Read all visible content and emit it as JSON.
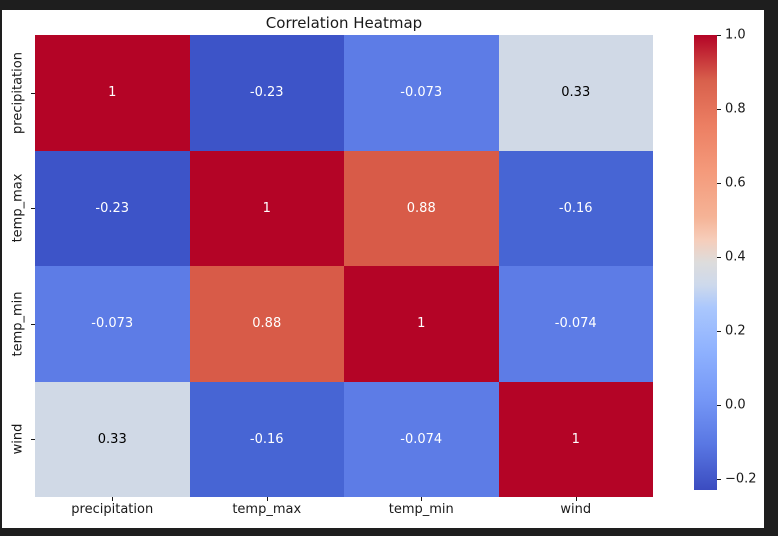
{
  "frame": {
    "background": "#1e1e1e",
    "figure_background": "#ffffff"
  },
  "chart_data": {
    "type": "heatmap",
    "title": "Correlation Heatmap",
    "colormap": "coolwarm",
    "categories": [
      "precipitation",
      "temp_max",
      "temp_min",
      "wind"
    ],
    "matrix": [
      [
        1,
        -0.23,
        -0.073,
        0.33
      ],
      [
        -0.23,
        1,
        0.88,
        -0.16
      ],
      [
        -0.073,
        0.88,
        1,
        -0.074
      ],
      [
        0.33,
        -0.16,
        -0.074,
        1
      ]
    ],
    "cell_labels": [
      [
        "1",
        "-0.23",
        "-0.073",
        "0.33"
      ],
      [
        "-0.23",
        "1",
        "0.88",
        "-0.16"
      ],
      [
        "-0.073",
        "0.88",
        "1",
        "-0.074"
      ],
      [
        "0.33",
        "-0.16",
        "-0.074",
        "1"
      ]
    ],
    "cell_colors": [
      [
        "#b40426",
        "#3d54c8",
        "#5d7ce6",
        "#d0d9e6"
      ],
      [
        "#3d54c8",
        "#b40426",
        "#d85b48",
        "#4765d4"
      ],
      [
        "#5d7ce6",
        "#d85b48",
        "#b40426",
        "#5d7ce6"
      ],
      [
        "#d0d9e6",
        "#4765d4",
        "#5d7ce6",
        "#b40426"
      ]
    ],
    "cell_text_colors": [
      [
        "#ffffff",
        "#ffffff",
        "#ffffff",
        "#000000"
      ],
      [
        "#ffffff",
        "#ffffff",
        "#ffffff",
        "#ffffff"
      ],
      [
        "#ffffff",
        "#ffffff",
        "#ffffff",
        "#ffffff"
      ],
      [
        "#000000",
        "#ffffff",
        "#ffffff",
        "#ffffff"
      ]
    ],
    "vmin": -0.23,
    "vmax": 1.0,
    "grid": false,
    "colorbar": {
      "position": "right",
      "tick_labels": [
        "1.0",
        "0.8",
        "0.6",
        "0.4",
        "0.2",
        "0.0",
        "−0.2"
      ],
      "tick_values": [
        1.0,
        0.8,
        0.6,
        0.4,
        0.2,
        0.0,
        -0.2
      ],
      "gradient": [
        [
          "#b40426",
          0
        ],
        [
          "#d8604c",
          10
        ],
        [
          "#ec7f63",
          20
        ],
        [
          "#f49a7b",
          30
        ],
        [
          "#f5b396",
          40
        ],
        [
          "#f6cdba",
          45
        ],
        [
          "#dddcdc",
          50
        ],
        [
          "#cdd9ec",
          55
        ],
        [
          "#aac7fd",
          60
        ],
        [
          "#8db0fe",
          70
        ],
        [
          "#7597f6",
          80
        ],
        [
          "#5977e3",
          90
        ],
        [
          "#3b4cc0",
          100
        ]
      ]
    }
  }
}
